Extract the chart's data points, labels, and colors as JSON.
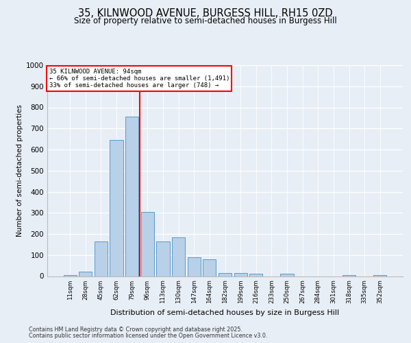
{
  "title_line1": "35, KILNWOOD AVENUE, BURGESS HILL, RH15 0ZD",
  "title_line2": "Size of property relative to semi-detached houses in Burgess Hill",
  "xlabel": "Distribution of semi-detached houses by size in Burgess Hill",
  "ylabel": "Number of semi-detached properties",
  "categories": [
    "11sqm",
    "28sqm",
    "45sqm",
    "62sqm",
    "79sqm",
    "96sqm",
    "113sqm",
    "130sqm",
    "147sqm",
    "164sqm",
    "182sqm",
    "199sqm",
    "216sqm",
    "233sqm",
    "250sqm",
    "267sqm",
    "284sqm",
    "301sqm",
    "318sqm",
    "335sqm",
    "352sqm"
  ],
  "values": [
    5,
    22,
    165,
    645,
    755,
    305,
    165,
    185,
    90,
    80,
    15,
    15,
    12,
    0,
    12,
    0,
    0,
    0,
    5,
    0,
    5
  ],
  "bar_color": "#b8d0e8",
  "bar_edge_color": "#5a9ac8",
  "vline_color": "red",
  "annotation_title": "35 KILNWOOD AVENUE: 94sqm",
  "annotation_line1": "← 66% of semi-detached houses are smaller (1,491)",
  "annotation_line2": "33% of semi-detached houses are larger (748) →",
  "annotation_box_color": "white",
  "annotation_box_edge": "red",
  "ylim": [
    0,
    1000
  ],
  "yticks": [
    0,
    100,
    200,
    300,
    400,
    500,
    600,
    700,
    800,
    900,
    1000
  ],
  "footer_line1": "Contains HM Land Registry data © Crown copyright and database right 2025.",
  "footer_line2": "Contains public sector information licensed under the Open Government Licence v3.0.",
  "bg_color": "#e8eef6",
  "plot_bg_color": "#e8eef6"
}
